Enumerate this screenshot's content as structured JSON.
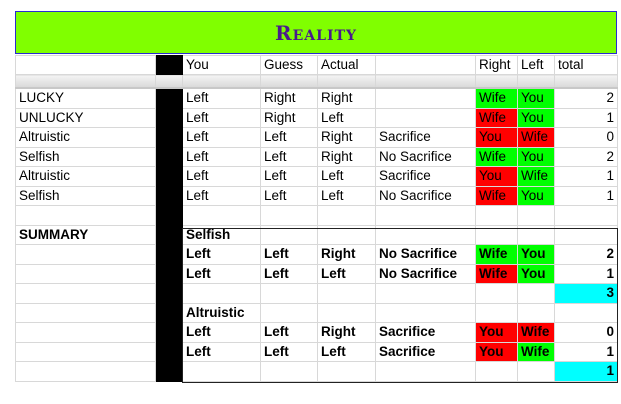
{
  "title": "Reality",
  "colors": {
    "title_bg": "#80ff00",
    "title_text": "#4b1a8c",
    "good": "#00ff00",
    "bad": "#ff0000",
    "total_highlight": "#00ffff"
  },
  "headers": [
    "",
    "",
    "You",
    "Guess",
    "Actual",
    "",
    "Right",
    "Left",
    "total"
  ],
  "rows": [
    {
      "label": "LUCKY",
      "you": "Left",
      "guess": "Right",
      "actual": "Right",
      "note": "",
      "right": "Wife",
      "right_color": "good",
      "left": "You",
      "left_color": "good",
      "total": "2"
    },
    {
      "label": "UNLUCKY",
      "you": "Left",
      "guess": "Right",
      "actual": "Left",
      "note": "",
      "right": "Wife",
      "right_color": "bad",
      "left": "You",
      "left_color": "good",
      "total": "1"
    },
    {
      "label": "Altruistic",
      "you": "Left",
      "guess": "Left",
      "actual": "Right",
      "note": "Sacrifice",
      "right": "You",
      "right_color": "bad",
      "left": "Wife",
      "left_color": "bad",
      "total": "0"
    },
    {
      "label": "Selfish",
      "you": "Left",
      "guess": "Left",
      "actual": "Right",
      "note": "No Sacrifice",
      "right": "Wife",
      "right_color": "good",
      "left": "You",
      "left_color": "good",
      "total": "2"
    },
    {
      "label": "Altruistic",
      "you": "Left",
      "guess": "Left",
      "actual": "Left",
      "note": "Sacrifice",
      "right": "You",
      "right_color": "bad",
      "left": "Wife",
      "left_color": "good",
      "total": "1"
    },
    {
      "label": "Selfish",
      "you": "Left",
      "guess": "Left",
      "actual": "Left",
      "note": "No Sacrifice",
      "right": "Wife",
      "right_color": "bad",
      "left": "You",
      "left_color": "good",
      "total": "1"
    }
  ],
  "summary": {
    "label": "SUMMARY",
    "groups": [
      {
        "name": "Selfish",
        "rows": [
          {
            "you": "Left",
            "guess": "Left",
            "actual": "Right",
            "note": "No Sacrifice",
            "right": "Wife",
            "right_color": "good",
            "left": "You",
            "left_color": "good",
            "total": "2"
          },
          {
            "you": "Left",
            "guess": "Left",
            "actual": "Left",
            "note": "No Sacrifice",
            "right": "Wife",
            "right_color": "bad",
            "left": "You",
            "left_color": "good",
            "total": "1"
          }
        ],
        "sum": "3"
      },
      {
        "name": "Altruistic",
        "rows": [
          {
            "you": "Left",
            "guess": "Left",
            "actual": "Right",
            "note": "Sacrifice",
            "right": "You",
            "right_color": "bad",
            "left": "Wife",
            "left_color": "bad",
            "total": "0"
          },
          {
            "you": "Left",
            "guess": "Left",
            "actual": "Left",
            "note": "Sacrifice",
            "right": "You",
            "right_color": "bad",
            "left": "Wife",
            "left_color": "good",
            "total": "1"
          }
        ],
        "sum": "1"
      }
    ]
  }
}
